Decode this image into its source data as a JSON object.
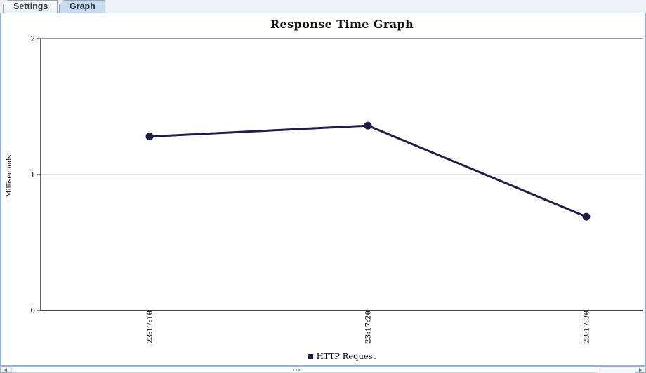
{
  "tabs": [
    {
      "label": "Settings",
      "active": false
    },
    {
      "label": "Graph",
      "active": true
    }
  ],
  "chart_data": {
    "type": "line",
    "title": "Response Time Graph",
    "ylabel": "Milliseconds",
    "xlabel": "",
    "categories": [
      "23:17:10",
      "23:17:20",
      "23:17:30"
    ],
    "series": [
      {
        "name": "HTTP Request",
        "values": [
          1.28,
          1.36,
          0.69
        ],
        "color": "#1e1e46"
      }
    ],
    "ylim": [
      0,
      2
    ],
    "yticks": [
      0,
      1,
      2
    ],
    "grid": true,
    "legend_position": "bottom-center"
  },
  "colors": {
    "tab_active_bg": "#c8dcf0",
    "panel_border": "#97b1d0",
    "axis": "#000000",
    "gridline": "#c9c9c9",
    "series": "#1e1e46"
  },
  "scrollbar": {
    "orientation": "horizontal"
  }
}
